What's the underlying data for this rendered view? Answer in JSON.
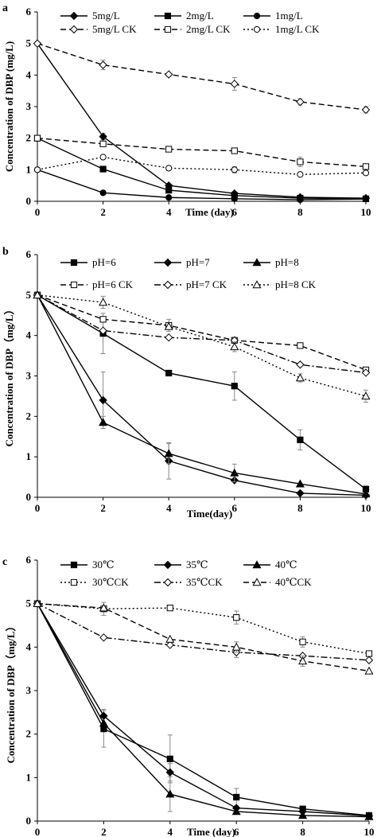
{
  "chart_data": [
    {
      "type": "line",
      "panel_label": "a",
      "xlabel": "Time (day)",
      "ylabel": "Concentration of DBP (mg/L)",
      "x": [
        0,
        2,
        4,
        6,
        8,
        10
      ],
      "xlim": [
        0,
        10
      ],
      "ylim": [
        0,
        6
      ],
      "xticks": [
        "0",
        "2",
        "4",
        "6",
        "8",
        "10"
      ],
      "yticks": [
        "0",
        "1",
        "2",
        "3",
        "4",
        "5",
        "6"
      ],
      "grid": false,
      "legend_position": "top",
      "series": [
        {
          "name": "5mg/L",
          "marker": "diamond",
          "filled": true,
          "dash": "solid",
          "values": [
            5,
            2.05,
            0.5,
            0.25,
            0.13,
            0.1
          ],
          "errors": [
            0,
            0.1,
            0,
            0,
            0,
            0
          ]
        },
        {
          "name": "2mg/L",
          "marker": "square",
          "filled": true,
          "dash": "solid",
          "values": [
            2,
            1.02,
            0.35,
            0.18,
            0.1,
            0.08
          ],
          "errors": [
            0,
            0,
            0,
            0,
            0,
            0
          ]
        },
        {
          "name": "1mg/L",
          "marker": "circle",
          "filled": true,
          "dash": "solid",
          "values": [
            1,
            0.27,
            0.12,
            0.08,
            0.05,
            0.07
          ],
          "errors": [
            0,
            0,
            0,
            0,
            0,
            0
          ]
        },
        {
          "name": "5mg/L CK",
          "marker": "diamond",
          "filled": false,
          "dash": "dash",
          "values": [
            5,
            4.32,
            4.02,
            3.72,
            3.15,
            2.9
          ],
          "errors": [
            0,
            0.15,
            0,
            0.2,
            0.1,
            0.1
          ]
        },
        {
          "name": "2mg/L CK",
          "marker": "square",
          "filled": false,
          "dash": "dash",
          "values": [
            2,
            1.82,
            1.65,
            1.6,
            1.25,
            1.1
          ],
          "errors": [
            0,
            0,
            0,
            0,
            0.15,
            0
          ]
        },
        {
          "name": "1mg/L CK",
          "marker": "circle",
          "filled": false,
          "dash": "dot",
          "values": [
            1,
            1.4,
            1.05,
            1.0,
            0.85,
            0.9
          ],
          "errors": [
            0,
            0,
            0,
            0.1,
            0,
            0
          ]
        }
      ]
    },
    {
      "type": "line",
      "panel_label": "b",
      "xlabel": "Time(day)",
      "ylabel": "Concentration of DBP（mg/L）",
      "x": [
        0,
        2,
        4,
        6,
        8,
        10
      ],
      "xlim": [
        0,
        10
      ],
      "ylim": [
        0,
        6
      ],
      "xticks": [
        "0",
        "2",
        "4",
        "6",
        "8",
        "10"
      ],
      "yticks": [
        "0",
        "1",
        "2",
        "3",
        "4",
        "5",
        "6"
      ],
      "grid": false,
      "legend_position": "top",
      "series": [
        {
          "name": "pH=6",
          "marker": "square",
          "filled": true,
          "dash": "solid",
          "values": [
            5,
            4.05,
            3.07,
            2.75,
            1.42,
            0.2
          ],
          "errors": [
            0,
            0.5,
            0,
            0.35,
            0.25,
            0.08
          ]
        },
        {
          "name": "pH=7",
          "marker": "diamond",
          "filled": true,
          "dash": "solid",
          "values": [
            5,
            2.4,
            0.9,
            0.42,
            0.1,
            0.05
          ],
          "errors": [
            0,
            0.7,
            0.45,
            0,
            0,
            0
          ]
        },
        {
          "name": "pH=8",
          "marker": "triangle",
          "filled": true,
          "dash": "solid",
          "values": [
            5,
            1.85,
            1.08,
            0.6,
            0.33,
            0.08
          ],
          "errors": [
            0,
            0.15,
            0.25,
            0.22,
            0,
            0
          ]
        },
        {
          "name": "pH=6 CK",
          "marker": "square",
          "filled": false,
          "dash": "dash",
          "values": [
            5,
            4.4,
            4.25,
            3.88,
            3.75,
            3.15
          ],
          "errors": [
            0,
            0,
            0.15,
            0,
            0,
            0
          ]
        },
        {
          "name": "pH=7 CK",
          "marker": "diamond",
          "filled": false,
          "dash": "dashdot",
          "values": [
            5,
            4.12,
            3.95,
            3.88,
            3.28,
            3.08
          ],
          "errors": [
            0,
            0,
            0,
            0,
            0,
            0
          ]
        },
        {
          "name": "pH=8 CK",
          "marker": "triangle",
          "filled": false,
          "dash": "dot",
          "values": [
            5,
            4.82,
            4.22,
            3.72,
            2.95,
            2.5
          ],
          "errors": [
            0,
            0.15,
            0,
            0.12,
            0.1,
            0.15
          ]
        }
      ]
    },
    {
      "type": "line",
      "panel_label": "c",
      "xlabel": "Time (day)",
      "ylabel": "Concentration of DBP（mg/L）",
      "x": [
        0,
        2,
        4,
        6,
        8,
        10
      ],
      "xlim": [
        0,
        10
      ],
      "ylim": [
        0,
        6
      ],
      "xticks": [
        "0",
        "2",
        "4",
        "6",
        "8",
        "10"
      ],
      "yticks": [
        "0",
        "1",
        "2",
        "3",
        "4",
        "5",
        "6"
      ],
      "grid": false,
      "legend_position": "top",
      "series": [
        {
          "name": "30℃",
          "marker": "square",
          "filled": true,
          "dash": "solid",
          "values": [
            5,
            2.12,
            1.43,
            0.55,
            0.28,
            0.13
          ],
          "errors": [
            0,
            0.42,
            0.55,
            0.2,
            0,
            0
          ]
        },
        {
          "name": "35℃",
          "marker": "diamond",
          "filled": true,
          "dash": "solid",
          "values": [
            5,
            2.42,
            1.12,
            0.3,
            0.22,
            0.12
          ],
          "errors": [
            0,
            0.15,
            0.2,
            0,
            0,
            0
          ]
        },
        {
          "name": "40℃",
          "marker": "triangle",
          "filled": true,
          "dash": "solid",
          "values": [
            5,
            2.25,
            0.62,
            0.22,
            0.13,
            0.1
          ],
          "errors": [
            0,
            0,
            0.4,
            0,
            0,
            0
          ]
        },
        {
          "name": "30℃CK",
          "marker": "square",
          "filled": false,
          "dash": "dot",
          "values": [
            5,
            4.88,
            4.9,
            4.68,
            4.12,
            3.85
          ],
          "errors": [
            0,
            0.15,
            0.05,
            0.15,
            0.12,
            0
          ]
        },
        {
          "name": "35℃CK",
          "marker": "diamond",
          "filled": false,
          "dash": "dashdot",
          "values": [
            5,
            4.22,
            4.05,
            3.88,
            3.8,
            3.7
          ],
          "errors": [
            0,
            0,
            0,
            0.12,
            0,
            0
          ]
        },
        {
          "name": "40℃CK",
          "marker": "triangle",
          "filled": false,
          "dash": "dash",
          "values": [
            5,
            4.9,
            4.18,
            4.0,
            3.68,
            3.45
          ],
          "errors": [
            0,
            0,
            0,
            0.12,
            0.12,
            0
          ]
        }
      ]
    }
  ]
}
